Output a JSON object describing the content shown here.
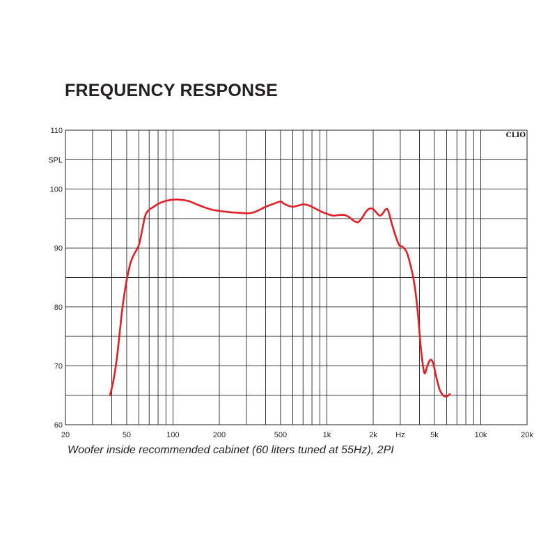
{
  "chart_data": {
    "type": "line",
    "title": "FREQUENCY RESPONSE",
    "caption": "Woofer inside recommended cabinet (60 liters tuned at 55Hz), 2PI",
    "brand": "CLIO",
    "xscale": "log",
    "xlim": [
      20,
      20000
    ],
    "ylim": [
      60,
      110
    ],
    "grid": true,
    "x_ticks": [
      {
        "v": 20,
        "label": "20"
      },
      {
        "v": 50,
        "label": "50"
      },
      {
        "v": 100,
        "label": "100"
      },
      {
        "v": 200,
        "label": "200"
      },
      {
        "v": 500,
        "label": "500"
      },
      {
        "v": 1000,
        "label": "1k"
      },
      {
        "v": 2000,
        "label": "2k"
      },
      {
        "v": 3000,
        "label": "Hz"
      },
      {
        "v": 5000,
        "label": "5k"
      },
      {
        "v": 10000,
        "label": "10k"
      },
      {
        "v": 20000,
        "label": "20k"
      }
    ],
    "y_ticks": [
      {
        "v": 110,
        "label": "110"
      },
      {
        "v": 105,
        "label": "SPL"
      },
      {
        "v": 100,
        "label": "100"
      },
      {
        "v": 90,
        "label": "90"
      },
      {
        "v": 80,
        "label": "80"
      },
      {
        "v": 70,
        "label": "70"
      },
      {
        "v": 60,
        "label": "60"
      }
    ],
    "line_color": "#e31e24",
    "series": [
      {
        "x": [
          39,
          41,
          43,
          45,
          47,
          50,
          53,
          56,
          60,
          63,
          66,
          70,
          75,
          80,
          90,
          100,
          110,
          125,
          140,
          160,
          180,
          200,
          230,
          260,
          300,
          330,
          360,
          400,
          450,
          500,
          520,
          560,
          600,
          650,
          700,
          750,
          800,
          900,
          1000,
          1100,
          1200,
          1300,
          1400,
          1500,
          1600,
          1700,
          1800,
          1900,
          2000,
          2100,
          2200,
          2300,
          2400,
          2500,
          2650,
          2800,
          2950,
          3100,
          3300,
          3500,
          3700,
          3900,
          4100,
          4300,
          4500,
          4700,
          4900,
          5100,
          5400,
          5700,
          6000,
          6300
        ],
        "y": [
          65,
          67.5,
          71,
          75.5,
          80,
          84.5,
          87.5,
          89,
          90.5,
          93,
          95.5,
          96.5,
          97,
          97.5,
          98,
          98.2,
          98.2,
          98,
          97.5,
          96.9,
          96.5,
          96.3,
          96.1,
          96,
          95.9,
          96,
          96.4,
          97,
          97.5,
          97.9,
          97.6,
          97.2,
          97,
          97.2,
          97.4,
          97.3,
          97,
          96.3,
          95.8,
          95.5,
          95.6,
          95.6,
          95.2,
          94.6,
          94.4,
          95.2,
          96.2,
          96.7,
          96.6,
          96,
          95.5,
          95.8,
          96.5,
          96.4,
          94,
          92,
          90.5,
          90.2,
          89.3,
          87,
          84,
          79,
          72.5,
          68.8,
          70,
          71,
          70.5,
          68.5,
          66,
          65,
          64.8,
          65.2
        ]
      }
    ]
  }
}
